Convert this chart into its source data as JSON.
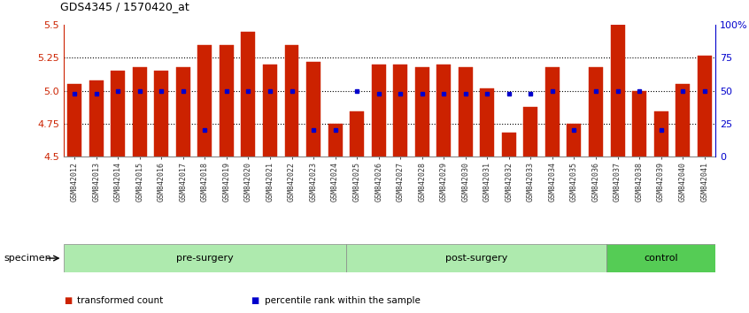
{
  "title": "GDS4345 / 1570420_at",
  "samples": [
    "GSM842012",
    "GSM842013",
    "GSM842014",
    "GSM842015",
    "GSM842016",
    "GSM842017",
    "GSM842018",
    "GSM842019",
    "GSM842020",
    "GSM842021",
    "GSM842022",
    "GSM842023",
    "GSM842024",
    "GSM842025",
    "GSM842026",
    "GSM842027",
    "GSM842028",
    "GSM842029",
    "GSM842030",
    "GSM842031",
    "GSM842032",
    "GSM842033",
    "GSM842034",
    "GSM842035",
    "GSM842036",
    "GSM842037",
    "GSM842038",
    "GSM842039",
    "GSM842040",
    "GSM842041"
  ],
  "bar_heights": [
    5.05,
    5.08,
    5.15,
    5.18,
    5.15,
    5.18,
    5.35,
    5.35,
    5.45,
    5.2,
    5.35,
    5.22,
    4.75,
    4.84,
    5.2,
    5.2,
    5.18,
    5.2,
    5.18,
    5.02,
    4.68,
    4.88,
    5.18,
    4.75,
    5.18,
    5.5,
    5.0,
    4.84,
    5.05,
    5.27
  ],
  "pct_values": [
    48,
    48,
    50,
    50,
    50,
    50,
    20,
    50,
    50,
    50,
    50,
    20,
    20,
    50,
    48,
    48,
    48,
    48,
    48,
    48,
    48,
    48,
    50,
    20,
    50,
    50,
    50,
    20,
    50,
    50
  ],
  "ylim_left": [
    4.5,
    5.5
  ],
  "ylim_right": [
    0,
    100
  ],
  "yticks_left": [
    4.5,
    4.75,
    5.0,
    5.25,
    5.5
  ],
  "yticks_right": [
    0,
    25,
    50,
    75,
    100
  ],
  "bar_color": "#CC2200",
  "dot_color": "#0000CC",
  "tick_color_left": "#CC2200",
  "tick_color_right": "#0000CC",
  "bar_baseline": 4.5,
  "group_defs": [
    {
      "label": "pre-surgery",
      "start": 0,
      "end": 13,
      "color": "#aeeaae"
    },
    {
      "label": "post-surgery",
      "start": 13,
      "end": 25,
      "color": "#aeeaae"
    },
    {
      "label": "control",
      "start": 25,
      "end": 30,
      "color": "#55cc55"
    }
  ],
  "legend_items": [
    "transformed count",
    "percentile rank within the sample"
  ],
  "legend_colors": [
    "#CC2200",
    "#0000CC"
  ]
}
